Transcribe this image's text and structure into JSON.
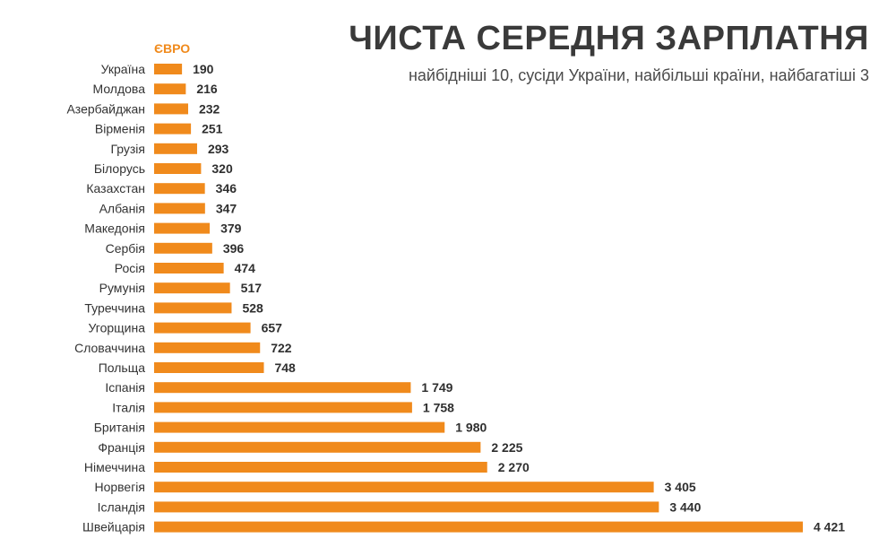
{
  "header": {
    "title": "ЧИСТА СЕРЕДНЯ ЗАРПЛАТНЯ",
    "subtitle": "найбідніші 10, сусіди України, найбільші країни, найбагатіші 3"
  },
  "colors": {
    "bar": "#f08a1c",
    "accent": "#f08a1c",
    "title": "#3a3a3a"
  },
  "chart_data": {
    "type": "bar",
    "orientation": "horizontal",
    "title": "ЧИСТА СЕРЕДНЯ ЗАРПЛАТНЯ",
    "subtitle": "найбідніші 10, сусіди України, найбільші країни, найбагатіші 3",
    "unit": "ЄВРО",
    "xlim": [
      0,
      4421
    ],
    "grid": false,
    "legend": "none",
    "categories": [
      "Україна",
      "Молдова",
      "Азербайджан",
      "Вірменія",
      "Грузія",
      "Білорусь",
      "Казахстан",
      "Албанія",
      "Македонія",
      "Сербія",
      "Росія",
      "Румунія",
      "Туреччина",
      "Угорщина",
      "Словаччина",
      "Польща",
      "Іспанія",
      "Італія",
      "Британія",
      "Франція",
      "Німеччина",
      "Норвегія",
      "Ісландія",
      "Швейцарія"
    ],
    "values": [
      190,
      216,
      232,
      251,
      293,
      320,
      346,
      347,
      379,
      396,
      474,
      517,
      528,
      657,
      722,
      748,
      1749,
      1758,
      1980,
      2225,
      2270,
      3405,
      3440,
      4421
    ],
    "value_labels": [
      "190",
      "216",
      "232",
      "251",
      "293",
      "320",
      "346",
      "347",
      "379",
      "396",
      "474",
      "517",
      "528",
      "657",
      "722",
      "748",
      "1 749",
      "1 758",
      "1 980",
      "2 225",
      "2 270",
      "3 405",
      "3 440",
      "4 421"
    ]
  }
}
